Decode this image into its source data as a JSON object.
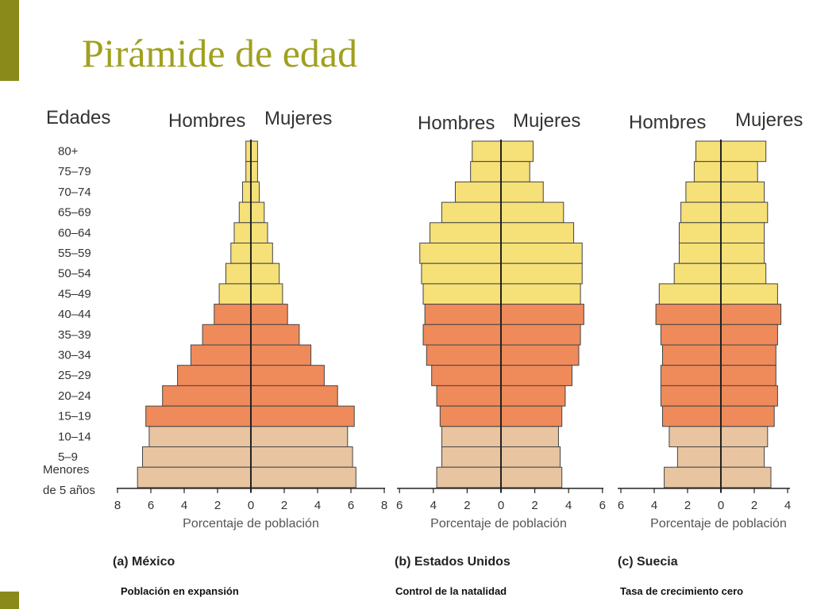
{
  "title": "Pirámide de edad",
  "colors": {
    "title": "#a0a020",
    "accent": "#8a8a1a",
    "young": "#e8c4a0",
    "adult": "#ef8a5a",
    "old": "#f6e078",
    "stroke": "#444444"
  },
  "age_header": "Edades",
  "age_groups": [
    "80+",
    "75–79",
    "70–74",
    "65–69",
    "60–64",
    "55–59",
    "50–54",
    "45–49",
    "40–44",
    "35–39",
    "30–34",
    "25–29",
    "20–24",
    "15–19",
    "10–14",
    "5–9",
    "Menores",
    "de 5 años"
  ],
  "chart_data": [
    {
      "type": "bar",
      "title": "(a)  México",
      "caption": "Población en expansión",
      "men_label": "Hombres",
      "women_label": "Mujeres",
      "xlabel": "Porcentaje de población",
      "xticks": [
        "8",
        "6",
        "4",
        "2",
        "0",
        "2",
        "4",
        "6",
        "8"
      ],
      "xlim": [
        -8,
        8
      ],
      "categories": [
        "80+",
        "75–79",
        "70–74",
        "65–69",
        "60–64",
        "55–59",
        "50–54",
        "45–49",
        "40–44",
        "35–39",
        "30–34",
        "25–29",
        "20–24",
        "15–19",
        "10–14",
        "5–9",
        "Menores de 5 años"
      ],
      "series": [
        {
          "name": "Hombres",
          "values": [
            0.3,
            0.3,
            0.5,
            0.7,
            1.0,
            1.2,
            1.5,
            1.9,
            2.2,
            2.9,
            3.6,
            4.4,
            5.3,
            6.3,
            6.1,
            6.5,
            6.8
          ]
        },
        {
          "name": "Mujeres",
          "values": [
            0.4,
            0.4,
            0.5,
            0.8,
            1.0,
            1.3,
            1.7,
            1.9,
            2.2,
            2.9,
            3.6,
            4.4,
            5.2,
            6.2,
            5.8,
            6.1,
            6.3
          ]
        }
      ]
    },
    {
      "type": "bar",
      "title": "(b)  Estados Unidos",
      "caption": "Control de la natalidad",
      "men_label": "Hombres",
      "women_label": "Mujeres",
      "xlabel": "Porcentaje de población",
      "xticks": [
        "6",
        "4",
        "2",
        "0",
        "2",
        "4",
        "6"
      ],
      "xlim": [
        -6,
        6
      ],
      "categories": [
        "80+",
        "75–79",
        "70–74",
        "65–69",
        "60–64",
        "55–59",
        "50–54",
        "45–49",
        "40–44",
        "35–39",
        "30–34",
        "25–29",
        "20–24",
        "15–19",
        "10–14",
        "5–9",
        "Menores de 5 años"
      ],
      "series": [
        {
          "name": "Hombres",
          "values": [
            1.7,
            1.8,
            2.7,
            3.5,
            4.2,
            4.8,
            4.7,
            4.6,
            4.5,
            4.6,
            4.4,
            4.1,
            3.8,
            3.6,
            3.5,
            3.5,
            3.8
          ]
        },
        {
          "name": "Mujeres",
          "values": [
            1.9,
            1.7,
            2.5,
            3.7,
            4.3,
            4.8,
            4.8,
            4.7,
            4.9,
            4.7,
            4.6,
            4.2,
            3.8,
            3.6,
            3.4,
            3.5,
            3.6
          ]
        }
      ]
    },
    {
      "type": "bar",
      "title": "(c)  Suecia",
      "caption": "Tasa de crecimiento cero",
      "men_label": "Hombres",
      "women_label": "Mujeres",
      "xlabel": "Porcentaje de población",
      "xticks": [
        "6",
        "4",
        "2",
        "0",
        "2",
        "4"
      ],
      "xlim": [
        -6,
        4
      ],
      "categories": [
        "80+",
        "75–79",
        "70–74",
        "65–69",
        "60–64",
        "55–59",
        "50–54",
        "45–49",
        "40–44",
        "35–39",
        "30–34",
        "25–29",
        "20–24",
        "15–19",
        "10–14",
        "5–9",
        "Menores de 5 años"
      ],
      "series": [
        {
          "name": "Hombres",
          "values": [
            1.5,
            1.6,
            2.1,
            2.4,
            2.5,
            2.5,
            2.8,
            3.7,
            3.9,
            3.6,
            3.5,
            3.6,
            3.6,
            3.5,
            3.1,
            2.6,
            3.4
          ]
        },
        {
          "name": "Mujeres",
          "values": [
            2.7,
            2.2,
            2.6,
            2.8,
            2.6,
            2.6,
            2.7,
            3.4,
            3.6,
            3.4,
            3.3,
            3.3,
            3.4,
            3.2,
            2.8,
            2.6,
            3.0
          ]
        }
      ]
    }
  ]
}
